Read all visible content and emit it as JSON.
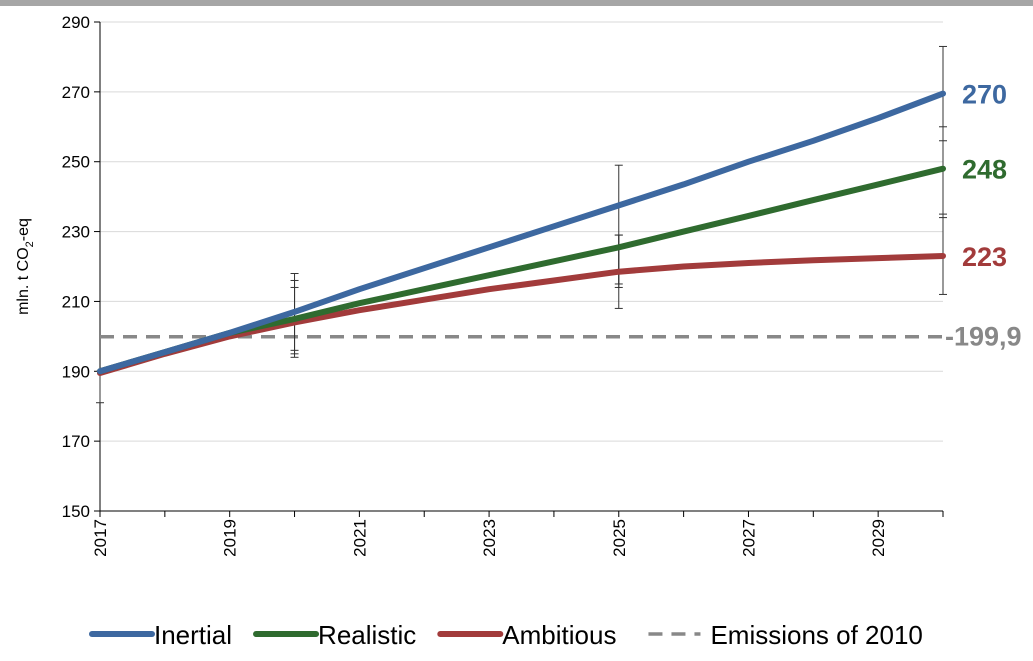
{
  "chart_data": {
    "type": "line",
    "title": "",
    "xlabel": "",
    "ylabel": "mln. t CO",
    "ylabel_sub": "2",
    "ylabel_suffix": "-eq",
    "xlim": [
      2017,
      2030
    ],
    "ylim": [
      150,
      290
    ],
    "x_ticks": [
      2017,
      2019,
      2021,
      2023,
      2025,
      2027,
      2029
    ],
    "y_ticks": [
      150,
      170,
      190,
      210,
      230,
      250,
      270,
      290
    ],
    "grid": "horizontal",
    "legend_position": "bottom",
    "series": [
      {
        "name": "Inertial",
        "color": "#3d68a0",
        "x": [
          2017,
          2018,
          2019,
          2020,
          2021,
          2022,
          2023,
          2024,
          2025,
          2026,
          2027,
          2028,
          2029,
          2030
        ],
        "y": [
          190,
          195.5,
          201,
          207,
          213.5,
          219.5,
          225.5,
          231.5,
          237.5,
          243.5,
          250,
          256,
          262.5,
          269.5
        ],
        "end_label": "270",
        "error_bars": [
          {
            "x": 2020,
            "low": 196,
            "high": 218
          },
          {
            "x": 2025,
            "low": 215,
            "high": 249
          },
          {
            "x": 2030,
            "low": 256,
            "high": 283
          }
        ]
      },
      {
        "name": "Realistic",
        "color": "#2f6b2f",
        "x": [
          2017,
          2018,
          2019,
          2020,
          2021,
          2022,
          2023,
          2024,
          2025,
          2026,
          2027,
          2028,
          2029,
          2030
        ],
        "y": [
          190,
          195.5,
          201,
          205,
          209.5,
          213.5,
          217.5,
          221.5,
          225.5,
          230,
          234.5,
          239,
          243.5,
          248
        ],
        "end_label": "248",
        "error_bars": [
          {
            "x": 2020,
            "low": 195,
            "high": 216
          },
          {
            "x": 2025,
            "low": 214,
            "high": 229
          },
          {
            "x": 2030,
            "low": 234,
            "high": 260
          }
        ]
      },
      {
        "name": "Ambitious",
        "color": "#a23b3b",
        "x": [
          2017,
          2018,
          2019,
          2020,
          2021,
          2022,
          2023,
          2024,
          2025,
          2026,
          2027,
          2028,
          2029,
          2030
        ],
        "y": [
          189.5,
          195,
          200,
          204,
          207.5,
          210.5,
          213.5,
          216,
          218.5,
          220,
          221,
          221.8,
          222.4,
          223
        ],
        "end_label": "223",
        "error_bars": [
          {
            "x": 2017,
            "low": 181,
            "high": 190
          },
          {
            "x": 2020,
            "low": 194,
            "high": 214
          },
          {
            "x": 2025,
            "low": 208,
            "high": 229
          },
          {
            "x": 2030,
            "low": 212,
            "high": 235
          }
        ]
      }
    ],
    "reference_line": {
      "name": "Emissions of 2010",
      "value": 199.9,
      "label": "199,9",
      "color": "#888888",
      "style": "dashed"
    }
  }
}
